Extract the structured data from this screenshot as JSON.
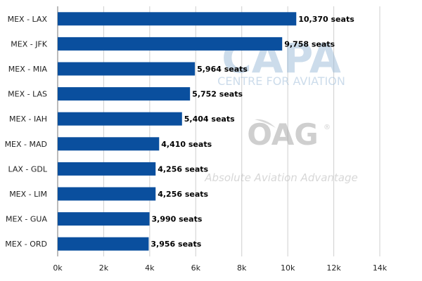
{
  "chart_data": {
    "type": "bar",
    "orientation": "horizontal",
    "categories": [
      "MEX - LAX",
      "MEX - JFK",
      "MEX - MIA",
      "MEX - LAS",
      "MEX - IAH",
      "MEX - MAD",
      "LAX - GDL",
      "MEX - LIM",
      "MEX - GUA",
      "MEX - ORD"
    ],
    "values": [
      10370,
      9758,
      5964,
      5752,
      5404,
      4410,
      4256,
      4256,
      3990,
      3956
    ],
    "data_labels": [
      "10,370 seats",
      "9,758 seats",
      "5,964 seats",
      "5,752 seats",
      "5,404 seats",
      "4,410 seats",
      "4,256 seats",
      "4,256 seats",
      "3,990 seats",
      "3,956 seats"
    ],
    "xticks": [
      0,
      2000,
      4000,
      6000,
      8000,
      10000,
      12000,
      14000
    ],
    "xtick_labels": [
      "0k",
      "2k",
      "4k",
      "6k",
      "8k",
      "10k",
      "12k",
      "14k"
    ],
    "xlim": [
      0,
      14000
    ],
    "grid": "vertical",
    "bar_color": "#0a4f9e",
    "title": "",
    "xlabel": "",
    "ylabel": ""
  },
  "watermarks": {
    "capa_logo": "CAPA",
    "capa_tagline": "CENTRE FOR AVIATION",
    "oag_logo": "OAG",
    "oag_tagline": "Absolute Aviation Advantage",
    "registered_mark": "®"
  }
}
